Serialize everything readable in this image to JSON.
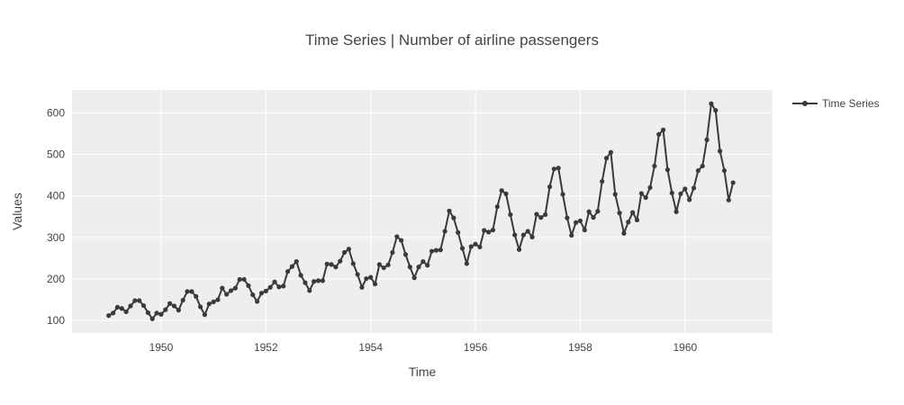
{
  "chart_data": {
    "type": "line",
    "title": "Time Series | Number of airline passengers",
    "xlabel": "Time",
    "ylabel": "Values",
    "xlim": [
      1948.3,
      1961.67
    ],
    "ylim": [
      70,
      655
    ],
    "x_ticks": [
      1950,
      1952,
      1954,
      1956,
      1958,
      1960
    ],
    "y_ticks": [
      100,
      200,
      300,
      400,
      500,
      600
    ],
    "grid": true,
    "legend_position": "top-right",
    "x_start": 1949.0,
    "x_step_months": 1,
    "series": [
      {
        "name": "Time Series",
        "color": "#3a3a3a",
        "values": [
          112,
          118,
          132,
          129,
          121,
          135,
          148,
          148,
          136,
          119,
          104,
          118,
          115,
          126,
          141,
          135,
          125,
          149,
          170,
          170,
          158,
          133,
          114,
          140,
          145,
          150,
          178,
          163,
          172,
          178,
          199,
          199,
          184,
          162,
          146,
          166,
          171,
          180,
          193,
          181,
          183,
          218,
          230,
          242,
          209,
          191,
          172,
          194,
          196,
          196,
          236,
          235,
          229,
          243,
          264,
          272,
          237,
          211,
          180,
          201,
          204,
          188,
          235,
          227,
          234,
          264,
          302,
          293,
          259,
          229,
          203,
          229,
          242,
          233,
          267,
          269,
          270,
          315,
          364,
          347,
          312,
          274,
          237,
          278,
          284,
          277,
          317,
          313,
          318,
          374,
          413,
          405,
          355,
          306,
          271,
          306,
          315,
          301,
          356,
          348,
          355,
          422,
          465,
          467,
          404,
          347,
          305,
          336,
          340,
          318,
          362,
          348,
          363,
          435,
          491,
          505,
          404,
          359,
          310,
          337,
          360,
          342,
          406,
          396,
          420,
          472,
          548,
          559,
          463,
          407,
          362,
          405,
          417,
          391,
          419,
          461,
          472,
          535,
          622,
          606,
          508,
          461,
          390,
          432
        ]
      }
    ]
  }
}
